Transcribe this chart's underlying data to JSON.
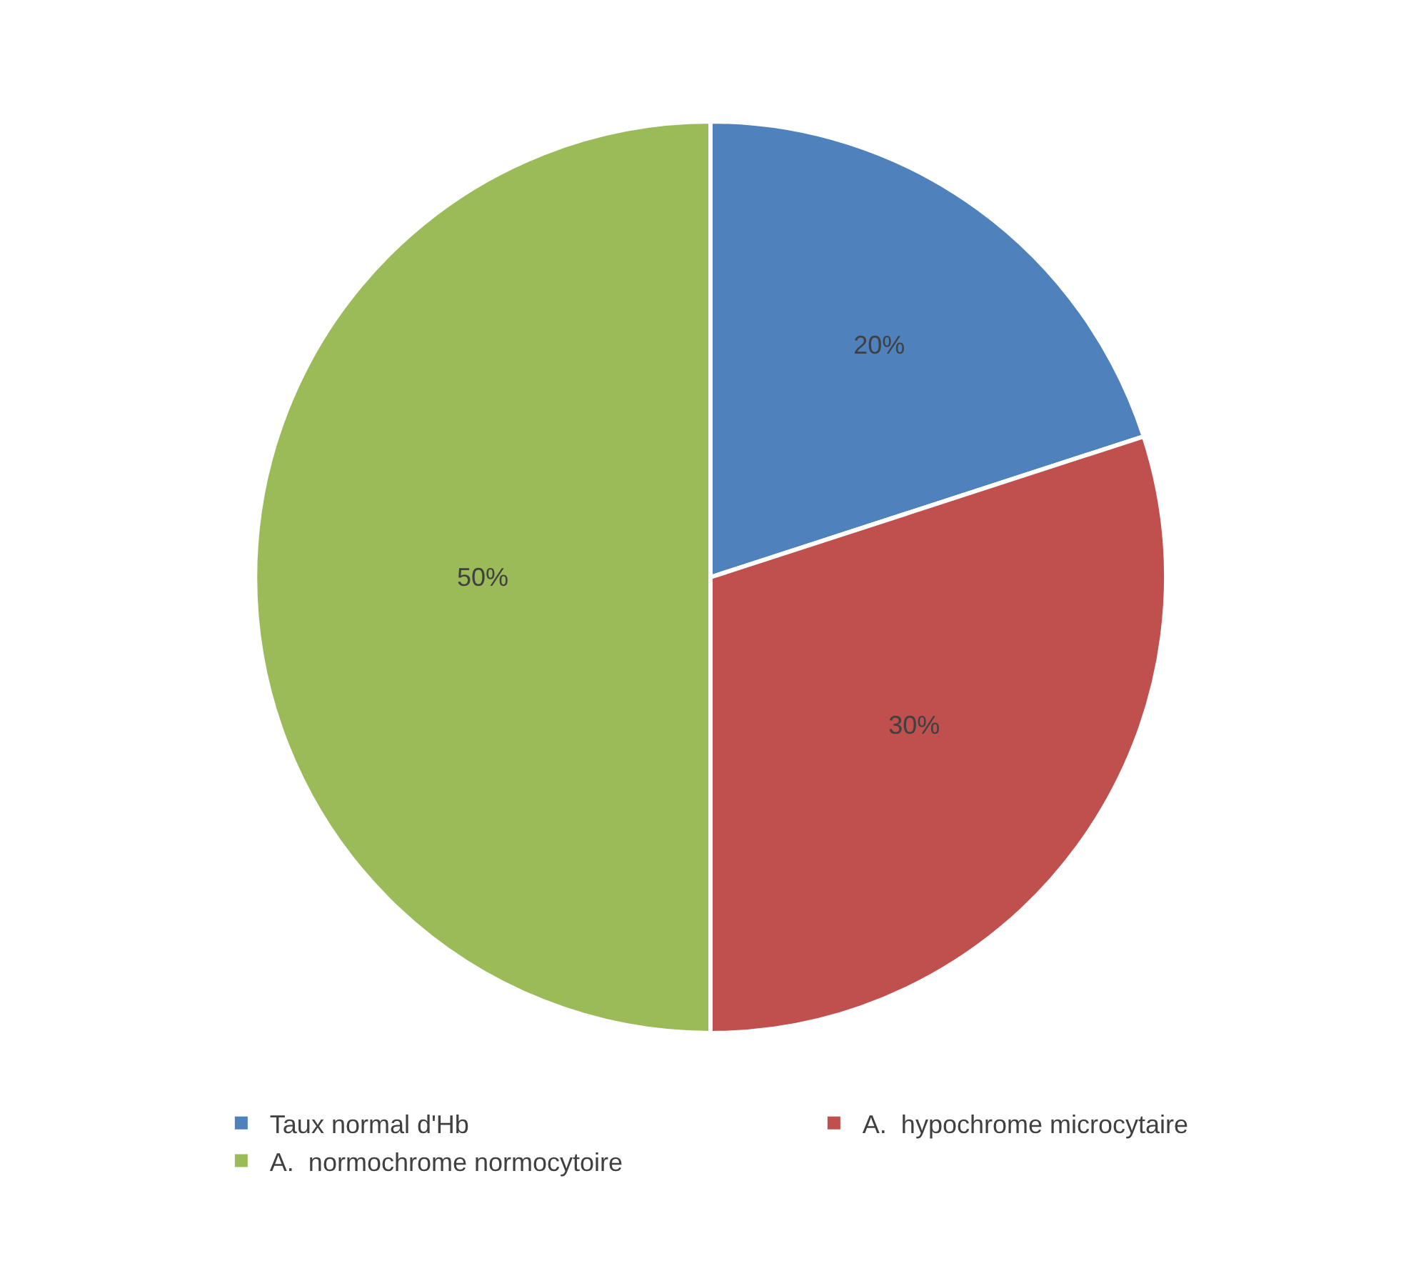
{
  "chart_data": {
    "type": "pie",
    "categories": [
      "Taux normal d'Hb",
      "A.  hypochrome microcytaire",
      "A.  normochrome normocytoire"
    ],
    "values": [
      20,
      30,
      50
    ],
    "value_labels": [
      "20%",
      "30%",
      "50%"
    ],
    "colors": [
      "#4f81bd",
      "#c0504d",
      "#9bbb59"
    ],
    "legend": "bottom"
  }
}
